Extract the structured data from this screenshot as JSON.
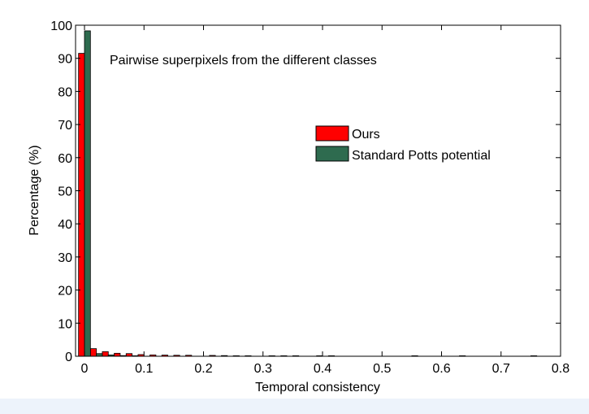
{
  "chart_data": {
    "type": "bar",
    "title": "",
    "annotation": "Pairwise superpixels from the different classes",
    "xlabel": "Temporal consistency",
    "ylabel": "Percentage (%)",
    "xlim": [
      -0.015,
      0.8
    ],
    "ylim": [
      0,
      100
    ],
    "xticks": [
      0,
      0.1,
      0.2,
      0.3,
      0.4,
      0.5,
      0.6,
      0.7,
      0.8
    ],
    "xtick_labels": [
      "0",
      "0.1",
      "0.2",
      "0.3",
      "0.4",
      "0.5",
      "0.6",
      "0.7",
      "0.8"
    ],
    "yticks": [
      0,
      10,
      20,
      30,
      40,
      50,
      60,
      70,
      80,
      90,
      100
    ],
    "ytick_labels": [
      "0",
      "10",
      "20",
      "30",
      "40",
      "50",
      "60",
      "70",
      "80",
      "90",
      "100"
    ],
    "grid": false,
    "legend_position": "upper-right",
    "bin_width": 0.02,
    "series": [
      {
        "name": "Ours",
        "color": "#ff0000",
        "points": [
          {
            "x": 0.0,
            "y": 91.5
          },
          {
            "x": 0.02,
            "y": 2.3
          },
          {
            "x": 0.04,
            "y": 1.4
          },
          {
            "x": 0.06,
            "y": 0.9
          },
          {
            "x": 0.08,
            "y": 0.8
          },
          {
            "x": 0.1,
            "y": 0.5
          },
          {
            "x": 0.12,
            "y": 0.4
          },
          {
            "x": 0.14,
            "y": 0.35
          },
          {
            "x": 0.16,
            "y": 0.3
          },
          {
            "x": 0.18,
            "y": 0.3
          },
          {
            "x": 0.22,
            "y": 0.25
          },
          {
            "x": 0.24,
            "y": 0.2
          },
          {
            "x": 0.26,
            "y": 0.15
          },
          {
            "x": 0.28,
            "y": 0.15
          },
          {
            "x": 0.32,
            "y": 0.1
          },
          {
            "x": 0.34,
            "y": 0.1
          },
          {
            "x": 0.36,
            "y": 0.1
          },
          {
            "x": 0.4,
            "y": 0.1
          },
          {
            "x": 0.42,
            "y": 0.1
          },
          {
            "x": 0.56,
            "y": 0.1
          },
          {
            "x": 0.64,
            "y": 0.1
          },
          {
            "x": 0.76,
            "y": 0.1
          }
        ]
      },
      {
        "name": "Standard Potts potential",
        "color": "#2e6b4f",
        "points": [
          {
            "x": 0.0,
            "y": 98.3
          },
          {
            "x": 0.02,
            "y": 0.8
          },
          {
            "x": 0.04,
            "y": 0.4
          },
          {
            "x": 0.06,
            "y": 0.2
          },
          {
            "x": 0.08,
            "y": 0.1
          }
        ]
      }
    ]
  }
}
